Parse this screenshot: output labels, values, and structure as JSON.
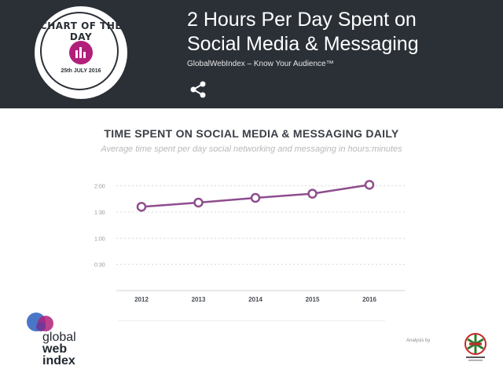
{
  "header": {
    "badge_title": "CHART OF THE DAY",
    "badge_date": "25th JULY 2016",
    "headline_line1": "2 Hours Per Day Spent on",
    "headline_line2": "Social Media & Messaging",
    "subline": "GlobalWebIndex – Know Your Audience™",
    "share_icon": "share-icon",
    "background_color": "#2b3037",
    "accent_color": "#b0207a"
  },
  "chart_data": {
    "type": "line",
    "title": "TIME SPENT ON SOCIAL MEDIA & MESSAGING DAILY",
    "subtitle": "Average time spent per day social networking and messaging in hours:minutes",
    "x": [
      "2012",
      "2013",
      "2014",
      "2015",
      "2016"
    ],
    "y_tick_labels": [
      "0:30",
      "1:00",
      "1:30",
      "2:00"
    ],
    "y_tick_values": [
      0.5,
      1.0,
      1.5,
      2.0
    ],
    "ylim": [
      0,
      2.1
    ],
    "series": [
      {
        "values": [
          1.6,
          1.68,
          1.77,
          1.85,
          2.02
        ],
        "color": "#8e4d8e"
      }
    ],
    "grid": true,
    "grid_style": "dotted"
  },
  "footer": {
    "logo_words": [
      "global",
      "web",
      "index"
    ],
    "credit_text": "Analysis by",
    "partner_logo_icon": "partner-logo-icon"
  }
}
